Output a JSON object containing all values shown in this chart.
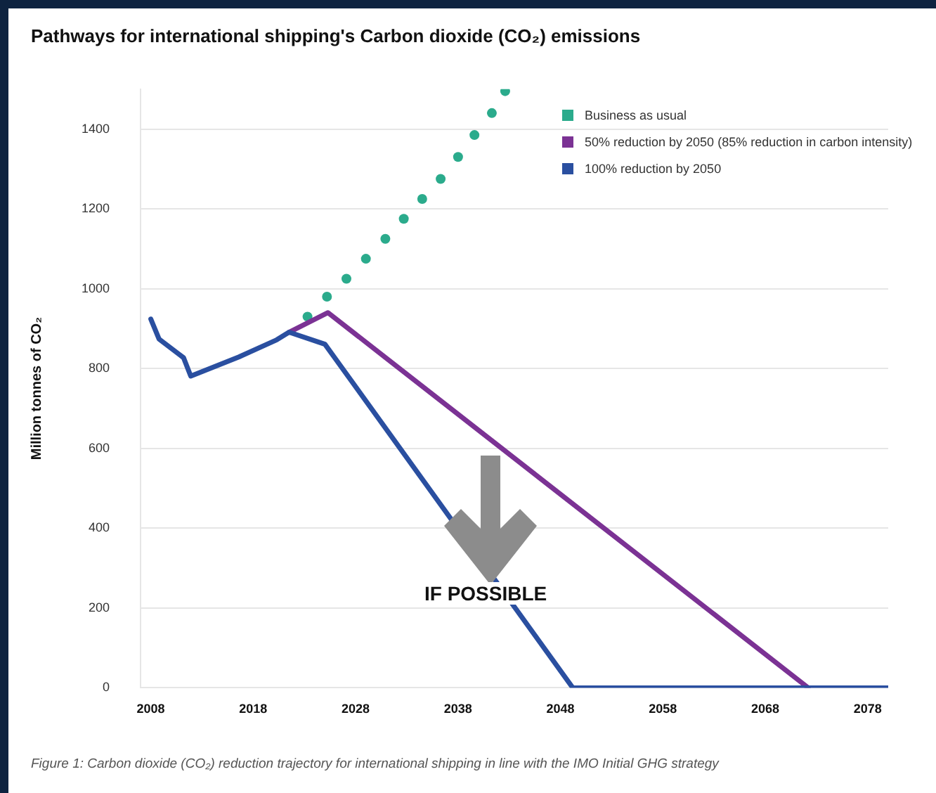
{
  "chart_data": {
    "type": "line",
    "title": "Pathways for international shipping's Carbon dioxide (CO₂) emissions",
    "ylabel": "Million tonnes of CO₂",
    "annotations": [
      "IF POSSIBLE",
      "Figure 1: Carbon dioxide (CO₂) reduction trajectory for international shipping in line with the IMO Initial GHG strategy"
    ],
    "xlim": [
      2007,
      2080
    ],
    "xticks": [
      2008,
      2018,
      2028,
      2038,
      2048,
      2058,
      2068,
      2078
    ],
    "ylim": [
      0,
      1500
    ],
    "yticks": [
      0,
      200,
      400,
      600,
      800,
      1000,
      1200,
      1400
    ],
    "grid": "y",
    "legend": "top right",
    "series": [
      {
        "name": "Business as usual",
        "type": "scatter",
        "color": "#2bab8c",
        "marker": "circle",
        "x": [
          2023.3,
          2025.2,
          2027.1,
          2029,
          2030.9,
          2032.7,
          2034.5,
          2036.3,
          2038,
          2039.6,
          2041.3,
          2042.6
        ],
        "values": [
          930,
          980,
          1025,
          1075,
          1125,
          1175,
          1225,
          1275,
          1330,
          1385,
          1440,
          1495
        ]
      },
      {
        "name": "50% reduction by 2050 (85% reduction in carbon intensity)",
        "color": "#7b3294",
        "marker": "none",
        "x": [
          2021.5,
          2025.3,
          2072.2
        ],
        "values": [
          891,
          940,
          0
        ]
      },
      {
        "name": "100% reduction by 2050",
        "color": "#2a4fa0",
        "marker": "none",
        "x": [
          2008,
          2008.8,
          2011.2,
          2011.9,
          2016.6,
          2020.3,
          2021.5,
          2025,
          2049.2,
          2080
        ],
        "values": [
          924,
          874,
          827,
          781,
          829,
          872,
          891,
          861,
          0,
          0
        ]
      }
    ]
  }
}
